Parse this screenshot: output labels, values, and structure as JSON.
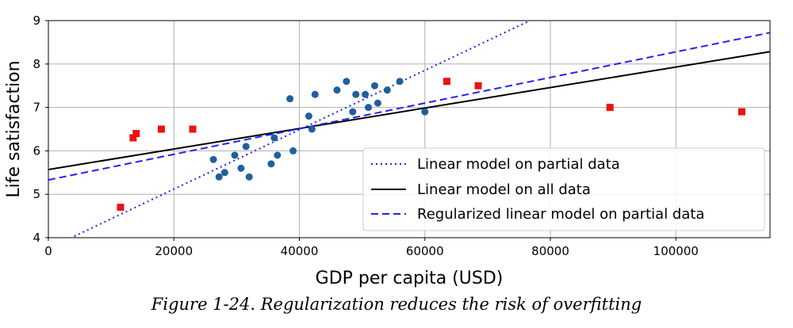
{
  "caption": "Figure 1-24. Regularization reduces the risk of overfitting",
  "chart_data": {
    "type": "scatter",
    "xlabel": "GDP per capita (USD)",
    "ylabel": "Life satisfaction",
    "xlim": [
      0,
      115000
    ],
    "ylim": [
      4,
      9
    ],
    "xticks": [
      0,
      20000,
      40000,
      60000,
      80000,
      100000
    ],
    "xtick_labels": [
      "0",
      "20000",
      "40000",
      "60000",
      "80000",
      "100000"
    ],
    "yticks": [
      4,
      5,
      6,
      7,
      8,
      9
    ],
    "ytick_labels": [
      "4",
      "5",
      "6",
      "7",
      "8",
      "9"
    ],
    "grid": true,
    "legend_position": "lower-right",
    "colors": {
      "partial_points": "#1f5f9e",
      "missing_points": "#ee1111",
      "partial_model": "#2222ee",
      "all_model": "#000000",
      "regularized_model": "#2222ee"
    },
    "scatter_series": [
      {
        "marker": "circle",
        "color_key": "partial_points",
        "points": [
          [
            26300,
            5.8
          ],
          [
            27200,
            5.4
          ],
          [
            28100,
            5.5
          ],
          [
            29700,
            5.9
          ],
          [
            30700,
            5.6
          ],
          [
            31500,
            6.1
          ],
          [
            32000,
            5.4
          ],
          [
            35500,
            5.7
          ],
          [
            36000,
            6.3
          ],
          [
            36500,
            5.9
          ],
          [
            38500,
            7.2
          ],
          [
            39000,
            6.0
          ],
          [
            41500,
            6.8
          ],
          [
            42000,
            6.5
          ],
          [
            42500,
            7.3
          ],
          [
            46000,
            7.4
          ],
          [
            47500,
            7.6
          ],
          [
            48500,
            6.9
          ],
          [
            49000,
            7.3
          ],
          [
            50500,
            7.3
          ],
          [
            51000,
            7.0
          ],
          [
            52000,
            7.5
          ],
          [
            52500,
            7.1
          ],
          [
            54000,
            7.4
          ],
          [
            56000,
            7.6
          ],
          [
            60000,
            6.9
          ]
        ]
      },
      {
        "marker": "square",
        "color_key": "missing_points",
        "points": [
          [
            11500,
            4.7
          ],
          [
            13500,
            6.3
          ],
          [
            14000,
            6.4
          ],
          [
            18000,
            6.5
          ],
          [
            23000,
            6.5
          ],
          [
            63500,
            7.6
          ],
          [
            68500,
            7.5
          ],
          [
            89500,
            7.0
          ],
          [
            110500,
            6.9
          ]
        ]
      }
    ],
    "lines": [
      {
        "name": "Linear model on partial data",
        "style": "dotted",
        "color_key": "partial_model",
        "intercept": 3.75,
        "slope": 6.84e-05
      },
      {
        "name": "Linear model on all data",
        "style": "solid",
        "color_key": "all_model",
        "intercept": 5.57,
        "slope": 2.36e-05
      },
      {
        "name": "Regularized linear model on partial data",
        "style": "dashed",
        "color_key": "regularized_model",
        "intercept": 5.33,
        "slope": 2.95e-05
      }
    ]
  }
}
